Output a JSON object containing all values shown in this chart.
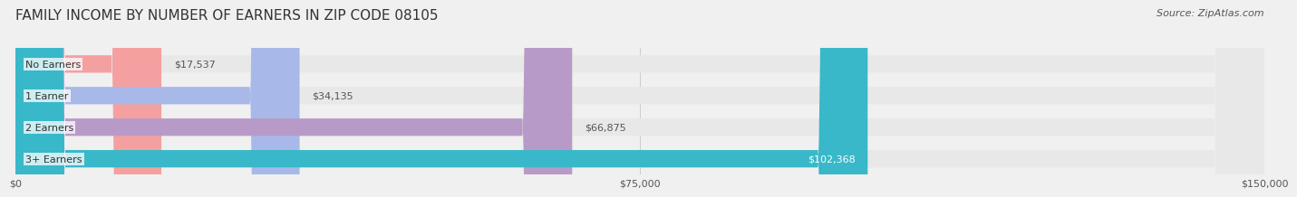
{
  "title": "FAMILY INCOME BY NUMBER OF EARNERS IN ZIP CODE 08105",
  "source": "Source: ZipAtlas.com",
  "categories": [
    "No Earners",
    "1 Earner",
    "2 Earners",
    "3+ Earners"
  ],
  "values": [
    17537,
    34135,
    66875,
    102368
  ],
  "bar_colors": [
    "#f4a0a0",
    "#a8b8e8",
    "#b89ac8",
    "#38b8c8"
  ],
  "label_colors": [
    "#555555",
    "#555555",
    "#555555",
    "#ffffff"
  ],
  "value_labels": [
    "$17,537",
    "$34,135",
    "$66,875",
    "$102,368"
  ],
  "xlim": [
    0,
    150000
  ],
  "xticks": [
    0,
    75000,
    150000
  ],
  "xtick_labels": [
    "$0",
    "$75,000",
    "$150,000"
  ],
  "bar_height": 0.55,
  "background_color": "#f0f0f0",
  "bar_bg_color": "#e8e8e8",
  "title_fontsize": 11,
  "source_fontsize": 8,
  "label_fontsize": 8,
  "value_fontsize": 8,
  "tick_fontsize": 8
}
